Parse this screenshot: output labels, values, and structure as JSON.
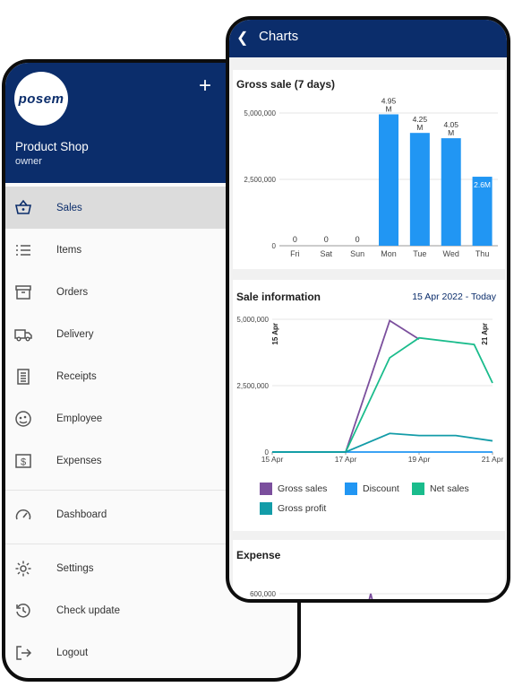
{
  "menu": {
    "logo_text": "posem",
    "add_label": "+",
    "shop_name": "Product Shop",
    "role": "owner",
    "items": [
      {
        "label": "Sales",
        "icon": "basket-icon"
      },
      {
        "label": "Items",
        "icon": "list-icon"
      },
      {
        "label": "Orders",
        "icon": "archive-icon"
      },
      {
        "label": "Delivery",
        "icon": "truck-icon"
      },
      {
        "label": "Receipts",
        "icon": "receipt-icon"
      },
      {
        "label": "Employee",
        "icon": "employee-icon"
      },
      {
        "label": "Expenses",
        "icon": "dollar-icon"
      },
      {
        "label": "Dashboard",
        "icon": "speedometer-icon"
      },
      {
        "label": "Settings",
        "icon": "gear-icon"
      },
      {
        "label": "Check update",
        "icon": "history-icon"
      },
      {
        "label": "Logout",
        "icon": "logout-icon"
      }
    ],
    "active_item": "Sales"
  },
  "charts_screen": {
    "title": "Charts",
    "gross_title": "Gross sale (7 days)",
    "sale_info_title": "Sale information",
    "date_range": "15 Apr 2022 - Today",
    "expense_title": "Expense"
  },
  "colors": {
    "navy": "#0b2d6b",
    "bar_blue": "#2196f3",
    "gross_sales": "#7b4f9d",
    "discount": "#2196f3",
    "net_sales": "#1abc8c",
    "gross_profit": "#139ca8"
  },
  "chart_data": [
    {
      "type": "bar",
      "title": "Gross sale (7 days)",
      "categories": [
        "Fri",
        "Sat",
        "Sun",
        "Mon",
        "Tue",
        "Wed",
        "Thu"
      ],
      "values": [
        0,
        0,
        0,
        4950000,
        4250000,
        4050000,
        2600000
      ],
      "value_labels": [
        "0",
        "0",
        "0",
        "4.95\nM",
        "4.25\nM",
        "4.05\nM",
        "2.6M"
      ],
      "y_ticks": [
        "0",
        "2,500,000",
        "5,000,000"
      ],
      "ylim": [
        0,
        5000000
      ]
    },
    {
      "type": "line",
      "title": "Sale information",
      "x_ticks": [
        "15 Apr",
        "17 Apr",
        "19 Apr",
        "21 Apr"
      ],
      "y_ticks": [
        "0",
        "2,500,000",
        "5,000,000"
      ],
      "ylim": [
        0,
        5000000
      ],
      "markers": [
        "15 Apr",
        "21 Apr"
      ],
      "series": [
        {
          "name": "Gross sales",
          "x": [
            15,
            17,
            18.2,
            19
          ],
          "y": [
            0,
            0,
            4950000,
            4250000
          ]
        },
        {
          "name": "Discount",
          "x": [
            15,
            21
          ],
          "y": [
            0,
            0
          ]
        },
        {
          "name": "Net sales",
          "x": [
            15,
            17,
            18.2,
            19,
            20.5,
            21
          ],
          "y": [
            0,
            0,
            3550000,
            4300000,
            4050000,
            2600000
          ]
        },
        {
          "name": "Gross profit",
          "x": [
            15,
            17,
            18.2,
            19,
            20,
            21
          ],
          "y": [
            0,
            0,
            700000,
            620000,
            620000,
            420000
          ]
        }
      ]
    },
    {
      "type": "line",
      "title": "Expense",
      "y_ticks": [
        "600,000"
      ],
      "ylim": [
        0,
        600000
      ],
      "series": [
        {
          "name": "",
          "x": [
            0,
            1,
            2
          ],
          "y": [
            0,
            600000,
            0
          ]
        }
      ]
    }
  ]
}
